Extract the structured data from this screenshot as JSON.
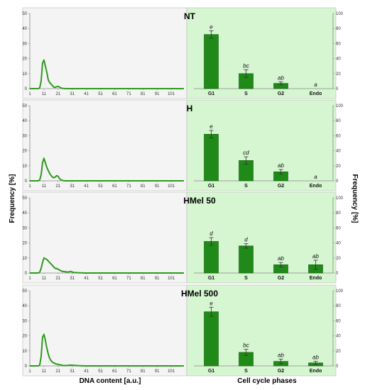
{
  "figure": {
    "ylabel_left": "Frequency [%]",
    "ylabel_right": "Frequency [%]",
    "xlabel_left": "DNA content [a.u.]",
    "xlabel_right": "Cell cycle phases"
  },
  "colors": {
    "line": "#2e9a1e",
    "bar": "#1f8a17",
    "right_bg": "#d6f5d1",
    "left_bg": "#f4f4f4"
  },
  "chart_data": [
    {
      "type": "line",
      "title": "",
      "x_ticks": [
        "1",
        "11",
        "21",
        "31",
        "41",
        "51",
        "61",
        "71",
        "81",
        "91",
        "101"
      ],
      "y_ticks": [
        "0",
        "10",
        "20",
        "30",
        "40",
        "50"
      ],
      "xlim": [
        1,
        110
      ],
      "ylim": [
        0,
        50
      ],
      "x": [
        1,
        2,
        3,
        4,
        5,
        6,
        7,
        8,
        9,
        10,
        11,
        12,
        13,
        14,
        15,
        16,
        17,
        18,
        19,
        20,
        21,
        22,
        23,
        24,
        25,
        26,
        30,
        40,
        110
      ],
      "y": [
        0,
        0,
        0,
        0,
        0,
        0,
        0,
        0.5,
        5,
        17,
        19,
        15,
        11,
        6,
        4,
        3,
        2,
        1,
        0.8,
        1.3,
        1.5,
        1,
        0.5,
        0.2,
        0.1,
        0,
        0,
        0,
        0
      ]
    },
    {
      "type": "bar",
      "title": "NT",
      "categories": [
        "G1",
        "S",
        "G2",
        "Endo"
      ],
      "values": [
        72,
        20,
        7,
        0
      ],
      "errors": [
        5,
        5,
        2,
        0
      ],
      "labels": [
        "e",
        "bc",
        "ab",
        "a"
      ],
      "y_ticks": [
        "0",
        "20",
        "40",
        "60",
        "80",
        "100"
      ],
      "ylim": [
        0,
        100
      ]
    },
    {
      "type": "line",
      "title": "",
      "x_ticks": [
        "1",
        "11",
        "21",
        "31",
        "41",
        "51",
        "61",
        "71",
        "81",
        "91",
        "101"
      ],
      "y_ticks": [
        "0",
        "10",
        "20",
        "30",
        "40",
        "50"
      ],
      "xlim": [
        1,
        110
      ],
      "ylim": [
        0,
        50
      ],
      "x": [
        1,
        2,
        3,
        4,
        5,
        6,
        7,
        8,
        9,
        10,
        11,
        12,
        13,
        14,
        15,
        16,
        17,
        18,
        19,
        20,
        21,
        22,
        23,
        24,
        25,
        26,
        30,
        40,
        110
      ],
      "y": [
        0,
        0,
        0,
        0,
        0,
        0,
        0,
        0.5,
        4,
        12,
        15,
        12,
        9,
        7,
        5,
        3.5,
        2.5,
        2,
        2.5,
        3.5,
        3,
        1.5,
        0.7,
        0.3,
        0.1,
        0,
        0,
        0,
        0
      ]
    },
    {
      "type": "bar",
      "title": "H",
      "categories": [
        "G1",
        "S",
        "G2",
        "Endo"
      ],
      "values": [
        62,
        27,
        12,
        0
      ],
      "errors": [
        5,
        5,
        3,
        0
      ],
      "labels": [
        "e",
        "cd",
        "ab",
        "a"
      ],
      "y_ticks": [
        "0",
        "20",
        "40",
        "60",
        "80",
        "100"
      ],
      "ylim": [
        0,
        100
      ]
    },
    {
      "type": "line",
      "title": "",
      "x_ticks": [
        "1",
        "11",
        "21",
        "31",
        "41",
        "51",
        "61",
        "71",
        "81",
        "91",
        "101"
      ],
      "y_ticks": [
        "0",
        "10",
        "20",
        "30",
        "40",
        "50"
      ],
      "xlim": [
        1,
        110
      ],
      "ylim": [
        0,
        50
      ],
      "x": [
        1,
        2,
        3,
        4,
        5,
        6,
        7,
        8,
        9,
        10,
        11,
        12,
        13,
        14,
        15,
        16,
        17,
        18,
        19,
        20,
        21,
        22,
        23,
        24,
        25,
        26,
        28,
        30,
        32,
        35,
        40,
        110
      ],
      "y": [
        0,
        0,
        0,
        0,
        0,
        0,
        0,
        0.5,
        3,
        7,
        10,
        9.5,
        9,
        8,
        7,
        6,
        5,
        4,
        3,
        3,
        2.5,
        2,
        1.5,
        1,
        1,
        0.8,
        0.6,
        1,
        0.4,
        0.2,
        0,
        0
      ]
    },
    {
      "type": "bar",
      "title": "HMel 50",
      "categories": [
        "G1",
        "S",
        "G2",
        "Endo"
      ],
      "values": [
        42,
        36,
        11,
        11
      ],
      "errors": [
        5,
        3,
        3,
        6
      ],
      "labels": [
        "d",
        "d",
        "ab",
        "ab"
      ],
      "y_ticks": [
        "0",
        "20",
        "40",
        "60",
        "80",
        "100"
      ],
      "ylim": [
        0,
        100
      ]
    },
    {
      "type": "line",
      "title": "",
      "x_ticks": [
        "1",
        "11",
        "21",
        "31",
        "41",
        "51",
        "61",
        "71",
        "81",
        "91",
        "101"
      ],
      "y_ticks": [
        "0",
        "10",
        "20",
        "30",
        "40",
        "50"
      ],
      "xlim": [
        1,
        110
      ],
      "ylim": [
        0,
        50
      ],
      "x": [
        1,
        2,
        3,
        4,
        5,
        6,
        7,
        8,
        9,
        10,
        11,
        12,
        13,
        14,
        15,
        16,
        17,
        18,
        19,
        20,
        21,
        22,
        23,
        24,
        25,
        26,
        30,
        35,
        40,
        110
      ],
      "y": [
        0,
        0,
        0,
        0,
        0,
        0,
        0,
        0.5,
        6,
        19,
        21,
        17,
        12,
        8,
        5,
        3.5,
        2.5,
        2,
        1.5,
        1.2,
        1,
        0.8,
        0.6,
        0.4,
        0.3,
        0.2,
        0.5,
        0.2,
        0,
        0
      ]
    },
    {
      "type": "bar",
      "title": "HMel 500",
      "categories": [
        "G1",
        "S",
        "G2",
        "Endo"
      ],
      "values": [
        72,
        18,
        6,
        4
      ],
      "errors": [
        6,
        4,
        3,
        2
      ],
      "labels": [
        "e",
        "bc",
        "ab",
        "ab"
      ],
      "y_ticks": [
        "0",
        "20",
        "40",
        "60",
        "80",
        "100"
      ],
      "ylim": [
        0,
        100
      ]
    }
  ]
}
